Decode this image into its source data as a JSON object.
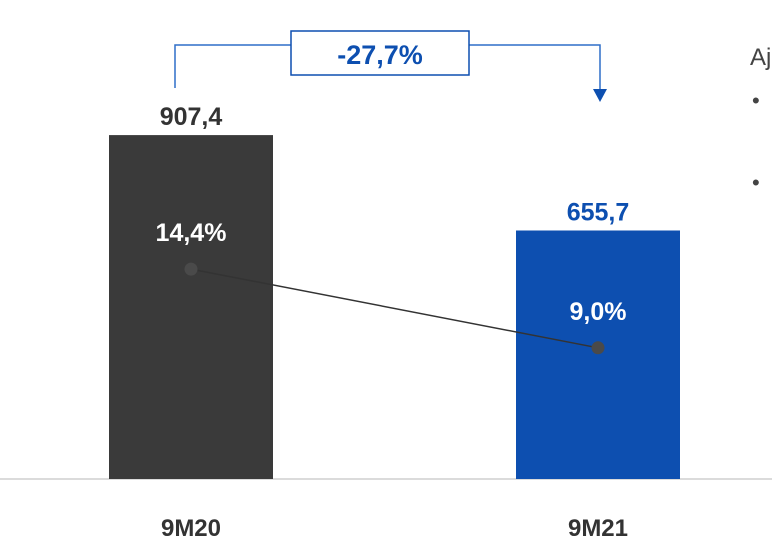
{
  "chart_data": {
    "type": "bar",
    "categories": [
      "9M20",
      "9M21"
    ],
    "series": [
      {
        "values": [
          907.4,
          655.7
        ],
        "value_labels": [
          "907,4",
          "655,7"
        ],
        "colors": [
          "#3a3a3a",
          "#0d4fb0"
        ]
      },
      {
        "type": "line",
        "values": [
          14.4,
          9.0
        ],
        "value_labels": [
          "14,4%",
          "9,0%"
        ],
        "color": "#4a4a4a"
      }
    ],
    "change_label": "-27,7%",
    "ylim": [
      0,
      1000
    ],
    "line_ylim": [
      0,
      26
    ],
    "grid": false,
    "legend": "none"
  },
  "side_text": {
    "fragment": "Aj",
    "bullets": [
      "•",
      "•"
    ]
  },
  "colors": {
    "accent": "#0d4fb0",
    "dark_bar": "#3a3a3a",
    "dark_text": "#333333",
    "baseline": "#cfcfcf",
    "connector": "#2f6fc8"
  }
}
